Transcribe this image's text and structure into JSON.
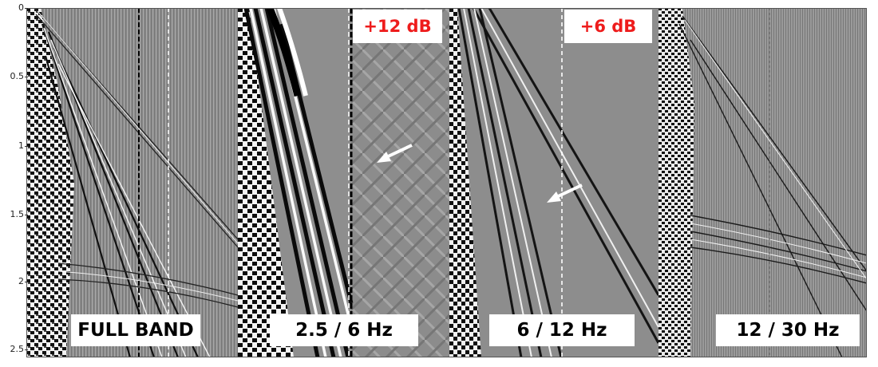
{
  "y_axis": {
    "ticks": [
      "0",
      "0.5",
      "1",
      "1.5",
      "2",
      "2.5"
    ]
  },
  "panels": [
    {
      "label": "FULL BAND",
      "gain": ""
    },
    {
      "label": "2.5 / 6 Hz",
      "gain": "+12 dB"
    },
    {
      "label": "6 / 12 Hz",
      "gain": "+6 dB"
    },
    {
      "label": "12 / 30 Hz",
      "gain": ""
    }
  ],
  "colors": {
    "gain_text": "#ee1c1c",
    "label_bg": "#ffffff",
    "seismic_mid": "#8f8f8f",
    "arrow": "#ffffff"
  },
  "icons": [
    "arrow-annotation-icon",
    "arrow-annotation-icon"
  ]
}
